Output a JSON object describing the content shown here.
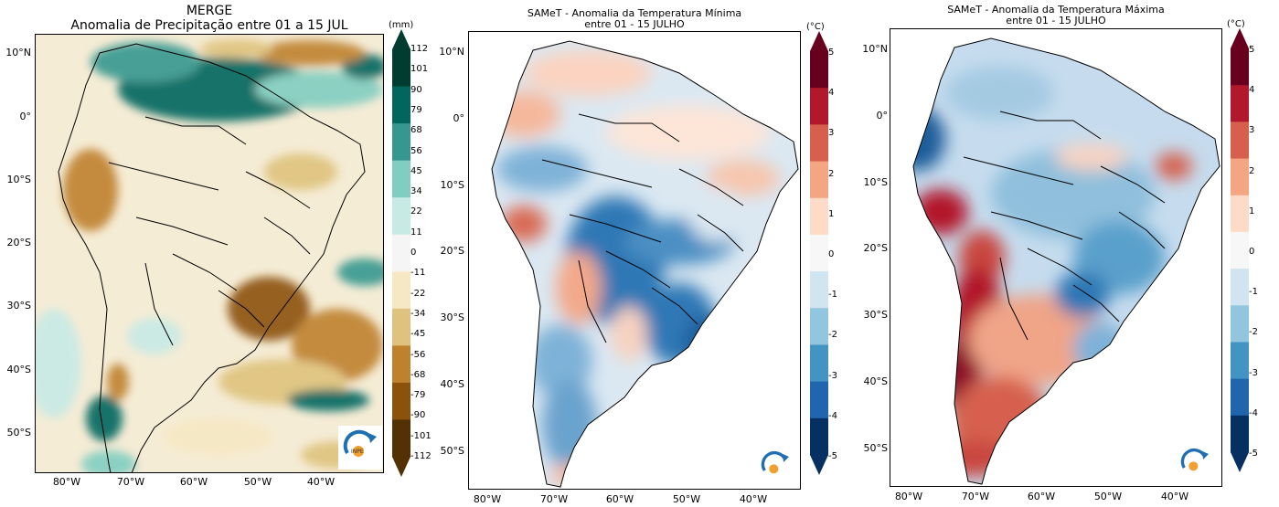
{
  "panels": [
    {
      "title_line1": "MERGE",
      "title_line2": "Anomalia de Precipitação entre 01 a 15 JUL",
      "unit": "(mm)",
      "colorbar_ticks": [
        "112",
        "101",
        "90",
        "79",
        "68",
        "56",
        "45",
        "34",
        "22",
        "11",
        "0",
        "-11",
        "-22",
        "-34",
        "-45",
        "-56",
        "-68",
        "-79",
        "-90",
        "-101",
        "-112"
      ],
      "colormap": [
        "#003c30",
        "#01665e",
        "#35978f",
        "#80cdc1",
        "#c7eae5",
        "#f5f5f5",
        "#f6e8c3",
        "#dfc27d",
        "#bf812d",
        "#8c510a",
        "#543005"
      ],
      "lat_ticks": [
        "10°N",
        "0°",
        "10°S",
        "20°S",
        "30°S",
        "40°S",
        "50°S"
      ],
      "lon_ticks": [
        "80°W",
        "70°W",
        "60°W",
        "50°W",
        "40°W"
      ]
    },
    {
      "title_line1": "SAMeT - Anomalia da Temperatura Mínima",
      "title_line2": "entre 01 - 15 JULHO",
      "unit": "(°C)",
      "colorbar_ticks": [
        "5",
        "4",
        "3",
        "2",
        "1",
        "0",
        "-1",
        "-2",
        "-3",
        "-4",
        "-5"
      ],
      "colormap": [
        "#67001f",
        "#b2182b",
        "#d6604d",
        "#f4a582",
        "#fddbc7",
        "#f7f7f7",
        "#d1e5f0",
        "#92c5de",
        "#4393c3",
        "#2166ac",
        "#053061"
      ],
      "lat_ticks": [
        "10°N",
        "0°",
        "10°S",
        "20°S",
        "30°S",
        "40°S",
        "50°S"
      ],
      "lon_ticks": [
        "80°W",
        "70°W",
        "60°W",
        "50°W",
        "40°W"
      ]
    },
    {
      "title_line1": "SAMeT - Anomalia da Temperatura Máxima",
      "title_line2": "entre 01 - 15 JULHO",
      "unit": "(°C)",
      "colorbar_ticks": [
        "5",
        "4",
        "3",
        "2",
        "1",
        "0",
        "-1",
        "-2",
        "-3",
        "-4",
        "-5"
      ],
      "colormap": [
        "#67001f",
        "#b2182b",
        "#d6604d",
        "#f4a582",
        "#fddbc7",
        "#f7f7f7",
        "#d1e5f0",
        "#92c5de",
        "#4393c3",
        "#2166ac",
        "#053061"
      ],
      "lat_ticks": [
        "10°N",
        "0°",
        "10°S",
        "20°S",
        "30°S",
        "40°S",
        "50°S"
      ],
      "lon_ticks": [
        "80°W",
        "70°W",
        "60°W",
        "50°W",
        "40°W"
      ]
    }
  ],
  "logo_text": "INPE",
  "colors": {
    "land_outline": "#000000",
    "ocean_fill_tmin": "#ffffff",
    "ocean_fill_tmax": "#ffffff"
  }
}
